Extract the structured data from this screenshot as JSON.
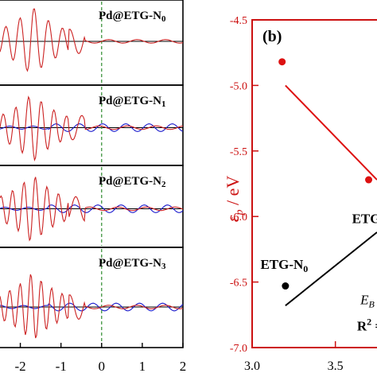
{
  "left_panel": {
    "xlim": [
      -2.5,
      2
    ],
    "x_ticks": [
      {
        "value": -2,
        "label": "-2"
      },
      {
        "value": -1,
        "label": "-1"
      },
      {
        "value": 0,
        "label": "0"
      },
      {
        "value": 1,
        "label": "1"
      },
      {
        "value": 2,
        "label": "2"
      }
    ],
    "fermi_level": 0,
    "colors": {
      "pd_d": "#cc2222",
      "support": "#1a1acc",
      "fermi": "#2e8b2e",
      "frame": "#000000"
    },
    "subpanels": [
      {
        "name_main": "Pd@ETG-N",
        "name_sub": "0"
      },
      {
        "name_main": "Pd@ETG-N",
        "name_sub": "1"
      },
      {
        "name_main": "Pd@ETG-N",
        "name_sub": "2"
      },
      {
        "name_main": "Pd@ETG-N",
        "name_sub": "3"
      }
    ]
  },
  "chart_data": {
    "type": "scatter",
    "panel_label": "(b)",
    "ylabel_symbol": "ε",
    "ylabel_sub": "p",
    "ylabel_unit": " / eV",
    "xlim": [
      3.0,
      3.75
    ],
    "ylim": [
      -7.0,
      -4.5
    ],
    "x_ticks": [
      {
        "value": 3.0,
        "label": "3.0"
      },
      {
        "value": 3.5,
        "label": "3.5"
      }
    ],
    "y_ticks": [
      {
        "value": -4.5,
        "label": "-4.5"
      },
      {
        "value": -5.0,
        "label": "-5.0"
      },
      {
        "value": -5.5,
        "label": "-5.5"
      },
      {
        "value": -6.0,
        "label": "-6.0"
      },
      {
        "value": -6.5,
        "label": "-6.5"
      },
      {
        "value": -7.0,
        "label": "-7.0"
      }
    ],
    "series": [
      {
        "color": "#dd1111",
        "points": [
          {
            "x": 3.18,
            "y": -4.82
          },
          {
            "x": 3.7,
            "y": -5.72
          }
        ],
        "fit_line": {
          "x": [
            3.2,
            3.75
          ],
          "y": [
            -5.0,
            -5.72
          ]
        }
      },
      {
        "color": "#000000",
        "points": [
          {
            "x": 3.2,
            "y": -6.53
          }
        ],
        "fit_line": {
          "x": [
            3.2,
            3.75
          ],
          "y": [
            -6.68,
            -6.12
          ]
        }
      }
    ],
    "annotations": [
      {
        "text_main": "ETG-N",
        "text_sub": "0",
        "x": 3.05,
        "y": -6.4
      },
      {
        "text_main": "ETG",
        "text_sub": "",
        "x": 3.6,
        "y": -6.05
      },
      {
        "text_main": "E",
        "text_sub": "B",
        "text_tail": " =",
        "x": 3.65,
        "y": -6.67
      },
      {
        "text_main": "R",
        "text_sup": "2",
        "text_tail": " =",
        "x": 3.63,
        "y": -6.87
      }
    ],
    "axis_color": "#cc1111",
    "grid": false
  }
}
